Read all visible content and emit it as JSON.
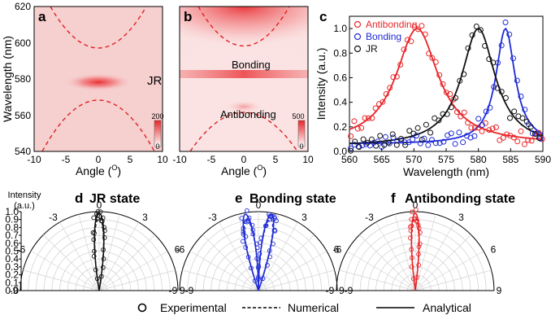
{
  "panels": {
    "a": {
      "letter": "a",
      "xlabel": "Angle (",
      "ylabel": "Wavelength (nm)",
      "xticks": [
        "-10",
        "-5",
        "0",
        "5",
        "10"
      ],
      "yticks": [
        "540",
        "560",
        "580",
        "600",
        "620"
      ],
      "annotation": "JR",
      "colorbar_max": "200",
      "colorbar_min": "0",
      "deg": "O",
      "close": ")"
    },
    "b": {
      "letter": "b",
      "xlabel": "Angle (",
      "xticks": [
        "-10",
        "-5",
        "0",
        "5",
        "10"
      ],
      "annotations": [
        "Bonding",
        "Antibonding"
      ],
      "colorbar_max": "500",
      "colorbar_min": "0",
      "deg": "O",
      "close": ")"
    },
    "d": {
      "letter": "d",
      "title": "JR state"
    },
    "e": {
      "letter": "e",
      "title": "Bonding state"
    },
    "f": {
      "letter": "f",
      "title": "Antibonding state"
    }
  },
  "polar_axis": {
    "label_line1": "Intensity",
    "label_line2": "(a.u.)",
    "rticks": [
      "0.0",
      "0.1",
      "0.2",
      "0.3",
      "0.4",
      "0.5",
      "0.6",
      "0.7",
      "0.8",
      "0.9",
      "1.0"
    ],
    "angle_labels": [
      "-9",
      "-6",
      "-3",
      "0",
      "3",
      "6",
      "9"
    ],
    "panel_f_right": "9"
  },
  "legend_bottom": [
    "Experimental",
    "Numerical",
    "Analytical"
  ],
  "colors": {
    "antibonding": "#e8262a",
    "bonding": "#1f2bd6",
    "jr": "#111111",
    "dashed_map": "#e02020"
  },
  "chart_data": {
    "type": "line",
    "letter": "c",
    "xlabel": "Wavelength (nm)",
    "ylabel": "Intensity (a.u.)",
    "xlim": [
      560,
      590
    ],
    "ylim": [
      0.0,
      1.1
    ],
    "xticks": [
      560,
      565,
      570,
      575,
      580,
      585,
      590
    ],
    "yticks": [
      0.0,
      0.2,
      0.4,
      0.6,
      0.8,
      1.0
    ],
    "legend_placement": "top-left",
    "series": [
      {
        "name": "Antibonding",
        "color": "#e8262a",
        "center": 570.5,
        "width": 4.0,
        "base": 0.06
      },
      {
        "name": "Bonding",
        "color": "#1f2bd6",
        "center": 584.2,
        "width": 1.8,
        "base": 0.06
      },
      {
        "name": "JR",
        "color": "#111111",
        "center": 580.0,
        "width": 3.2,
        "base": 0.04
      }
    ]
  }
}
